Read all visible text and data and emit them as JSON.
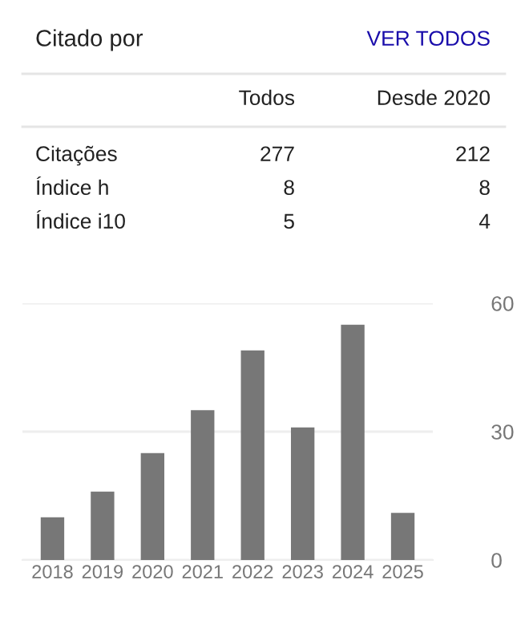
{
  "chart_data": {
    "type": "bar",
    "title": "Citado por",
    "annotations": [
      "VER TODOS",
      "Todos",
      "Desde 2020",
      "Citações",
      "277",
      "212",
      "Índice h",
      "8",
      "8",
      "Índice i10",
      "5",
      "4"
    ],
    "categories": [
      "2018",
      "2019",
      "2020",
      "2021",
      "2022",
      "2023",
      "2024",
      "2025"
    ],
    "values": [
      10,
      16,
      25,
      35,
      49,
      31,
      55,
      11
    ],
    "color": "#777777",
    "ylim": [
      0,
      60
    ],
    "yticks": [
      0,
      30,
      60
    ],
    "grid": "y"
  }
}
